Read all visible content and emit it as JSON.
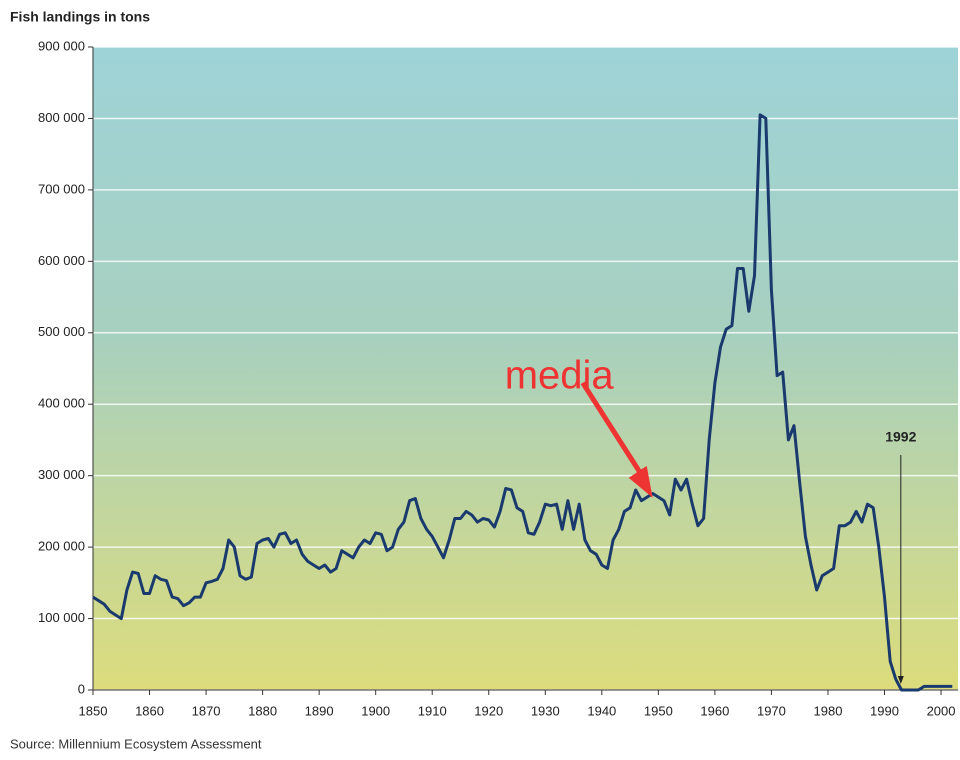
{
  "chart_data": {
    "type": "line",
    "title": "Fish landings in tons",
    "source": "Source: Millennium Ecosystem Assessment",
    "x": [
      1850,
      1851,
      1852,
      1853,
      1854,
      1855,
      1856,
      1857,
      1858,
      1859,
      1860,
      1861,
      1862,
      1863,
      1864,
      1865,
      1866,
      1867,
      1868,
      1869,
      1870,
      1871,
      1872,
      1873,
      1874,
      1875,
      1876,
      1877,
      1878,
      1879,
      1880,
      1881,
      1882,
      1883,
      1884,
      1885,
      1886,
      1887,
      1888,
      1889,
      1890,
      1891,
      1892,
      1893,
      1894,
      1895,
      1896,
      1897,
      1898,
      1899,
      1900,
      1901,
      1902,
      1903,
      1904,
      1905,
      1906,
      1907,
      1908,
      1909,
      1910,
      1911,
      1912,
      1913,
      1914,
      1915,
      1916,
      1917,
      1918,
      1919,
      1920,
      1921,
      1922,
      1923,
      1924,
      1925,
      1926,
      1927,
      1928,
      1929,
      1930,
      1931,
      1932,
      1933,
      1934,
      1935,
      1936,
      1937,
      1938,
      1939,
      1940,
      1941,
      1942,
      1943,
      1944,
      1945,
      1946,
      1947,
      1948,
      1949,
      1950,
      1951,
      1952,
      1953,
      1954,
      1955,
      1956,
      1957,
      1958,
      1959,
      1960,
      1961,
      1962,
      1963,
      1964,
      1965,
      1966,
      1967,
      1968,
      1969,
      1970,
      1971,
      1972,
      1973,
      1974,
      1975,
      1976,
      1977,
      1978,
      1979,
      1980,
      1981,
      1982,
      1983,
      1984,
      1985,
      1986,
      1987,
      1988,
      1989,
      1990,
      1991,
      1992,
      1993,
      1994,
      1995,
      1996,
      1997,
      1998,
      1999,
      2000,
      2001,
      2002
    ],
    "values": [
      130000,
      125000,
      120000,
      110000,
      105000,
      100000,
      140000,
      165000,
      163000,
      135000,
      135000,
      160000,
      155000,
      153000,
      130000,
      128000,
      118000,
      122000,
      130000,
      130000,
      150000,
      152000,
      155000,
      170000,
      210000,
      200000,
      160000,
      155000,
      158000,
      205000,
      210000,
      212000,
      200000,
      218000,
      220000,
      205000,
      210000,
      190000,
      180000,
      175000,
      170000,
      175000,
      165000,
      170000,
      195000,
      190000,
      185000,
      200000,
      210000,
      205000,
      220000,
      218000,
      195000,
      200000,
      225000,
      235000,
      265000,
      268000,
      240000,
      225000,
      215000,
      200000,
      185000,
      210000,
      240000,
      240000,
      250000,
      245000,
      235000,
      240000,
      238000,
      228000,
      250000,
      282000,
      280000,
      255000,
      250000,
      220000,
      218000,
      235000,
      260000,
      258000,
      260000,
      225000,
      265000,
      225000,
      260000,
      210000,
      195000,
      190000,
      175000,
      170000,
      210000,
      225000,
      250000,
      255000,
      280000,
      265000,
      270000,
      275000,
      270000,
      265000,
      245000,
      295000,
      280000,
      295000,
      260000,
      230000,
      240000,
      350000,
      430000,
      480000,
      505000,
      510000,
      590000,
      590000,
      530000,
      580000,
      805000,
      800000,
      560000,
      440000,
      445000,
      350000,
      370000,
      290000,
      215000,
      175000,
      140000,
      160000,
      165000,
      170000,
      230000,
      230000,
      235000,
      250000,
      235000,
      260000,
      255000,
      200000,
      130000,
      40000,
      15000,
      0,
      0,
      0,
      0,
      5000,
      5000,
      5000,
      5000,
      5000,
      5000
    ],
    "color": "#1a3a6e",
    "xlim": [
      1850,
      2003
    ],
    "ylim": [
      0,
      900000
    ],
    "xticks": [
      1850,
      1860,
      1870,
      1880,
      1890,
      1900,
      1910,
      1920,
      1930,
      1940,
      1950,
      1960,
      1970,
      1980,
      1990,
      2000
    ],
    "yticks": [
      0,
      {
        "value": 100000,
        "label": "100 000"
      },
      {
        "value": 200000,
        "label": "200 000"
      },
      {
        "value": 300000,
        "label": "300 000"
      },
      {
        "value": 400000,
        "label": "400 000"
      },
      {
        "value": 500000,
        "label": "500 000"
      },
      {
        "value": 600000,
        "label": "600 000"
      },
      {
        "value": 700000,
        "label": "700 000"
      },
      {
        "value": 800000,
        "label": "800 000"
      },
      {
        "value": 900000,
        "label": "900 000"
      }
    ],
    "grid": true,
    "annotations": [
      {
        "text": "1992",
        "x": 1992,
        "y": 0,
        "color": "#222222"
      },
      {
        "text": "media",
        "x": 1949,
        "y": 255000,
        "color": "#ee3333"
      }
    ]
  }
}
